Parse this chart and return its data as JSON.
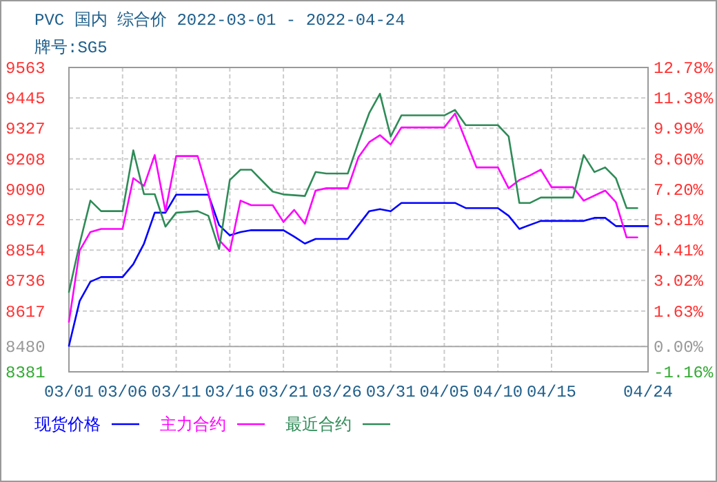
{
  "chart_data": {
    "type": "line",
    "title": "PVC 国内 综合价 2022-03-01 - 2022-04-24",
    "subtitle": "牌号:SG5",
    "xlim": [
      "2022-03-01",
      "2022-04-24"
    ],
    "xticks": [
      {
        "value": "2022-03-01",
        "label": "03/01"
      },
      {
        "value": "2022-03-06",
        "label": "03/06"
      },
      {
        "value": "2022-03-11",
        "label": "03/11"
      },
      {
        "value": "2022-03-16",
        "label": "03/16"
      },
      {
        "value": "2022-03-21",
        "label": "03/21"
      },
      {
        "value": "2022-03-26",
        "label": "03/26"
      },
      {
        "value": "2022-03-31",
        "label": "03/31"
      },
      {
        "value": "2022-04-05",
        "label": "04/05"
      },
      {
        "value": "2022-04-10",
        "label": "04/10"
      },
      {
        "value": "2022-04-15",
        "label": "04/15"
      },
      {
        "value": "2022-04-24",
        "label": "04/24"
      }
    ],
    "ylim": [
      8381,
      9563
    ],
    "yticks": [
      8381,
      8480,
      8617,
      8736,
      8854,
      8972,
      9090,
      9208,
      9327,
      9445,
      9563
    ],
    "y2lim": [
      -1.16,
      12.78
    ],
    "y2ticks": [
      {
        "value": -1.16,
        "label": "-1.16%"
      },
      {
        "value": 0,
        "label": "0.00%"
      },
      {
        "value": 1.63,
        "label": "1.63%"
      },
      {
        "value": 3.02,
        "label": "3.02%"
      },
      {
        "value": 4.41,
        "label": "4.41%"
      },
      {
        "value": 5.81,
        "label": "5.81%"
      },
      {
        "value": 7.2,
        "label": "7.20%"
      },
      {
        "value": 8.6,
        "label": "8.60%"
      },
      {
        "value": 9.99,
        "label": "9.99%"
      },
      {
        "value": 11.38,
        "label": "11.38%"
      },
      {
        "value": 12.78,
        "label": "12.78%"
      }
    ],
    "grid": true,
    "legend": "bottom",
    "series": [
      {
        "name": "现货价格",
        "color": "#0000ff",
        "x": [
          "2022-03-01",
          "2022-03-02",
          "2022-03-03",
          "2022-03-04",
          "2022-03-06",
          "2022-03-07",
          "2022-03-08",
          "2022-03-09",
          "2022-03-10",
          "2022-03-11",
          "2022-03-14",
          "2022-03-15",
          "2022-03-16",
          "2022-03-17",
          "2022-03-18",
          "2022-03-21",
          "2022-03-22",
          "2022-03-23",
          "2022-03-24",
          "2022-03-27",
          "2022-03-28",
          "2022-03-29",
          "2022-03-30",
          "2022-03-31",
          "2022-04-01",
          "2022-04-06",
          "2022-04-07",
          "2022-04-10",
          "2022-04-11",
          "2022-04-12",
          "2022-04-14",
          "2022-04-18",
          "2022-04-19",
          "2022-04-20",
          "2022-04-21",
          "2022-04-24"
        ],
        "values": [
          8482,
          8656,
          8731,
          8749,
          8749,
          8799,
          8879,
          8999,
          8999,
          9069,
          9069,
          8951,
          8911,
          8924,
          8931,
          8931,
          8906,
          8879,
          8897,
          8897,
          8951,
          9005,
          9013,
          9005,
          9037,
          9037,
          9017,
          9017,
          8987,
          8936,
          8967,
          8967,
          8979,
          8979,
          8947,
          8947
        ]
      },
      {
        "name": "主力合约",
        "color": "#ff00ff",
        "x": [
          "2022-03-01",
          "2022-03-02",
          "2022-03-03",
          "2022-03-04",
          "2022-03-06",
          "2022-03-07",
          "2022-03-08",
          "2022-03-09",
          "2022-03-10",
          "2022-03-11",
          "2022-03-13",
          "2022-03-14",
          "2022-03-15",
          "2022-03-16",
          "2022-03-17",
          "2022-03-18",
          "2022-03-20",
          "2022-03-21",
          "2022-03-22",
          "2022-03-23",
          "2022-03-24",
          "2022-03-25",
          "2022-03-27",
          "2022-03-28",
          "2022-03-29",
          "2022-03-30",
          "2022-03-31",
          "2022-04-01",
          "2022-04-05",
          "2022-04-06",
          "2022-04-08",
          "2022-04-10",
          "2022-04-11",
          "2022-04-12",
          "2022-04-13",
          "2022-04-14",
          "2022-04-15",
          "2022-04-17",
          "2022-04-18",
          "2022-04-20",
          "2022-04-21",
          "2022-04-22",
          "2022-04-23"
        ],
        "values": [
          8575,
          8852,
          8924,
          8936,
          8936,
          9133,
          9103,
          9223,
          9005,
          9219,
          9219,
          9076,
          8893,
          8849,
          9046,
          9028,
          9028,
          8963,
          9010,
          8956,
          9085,
          9094,
          9094,
          9215,
          9273,
          9300,
          9264,
          9330,
          9330,
          9384,
          9175,
          9175,
          9094,
          9126,
          9144,
          9166,
          9098,
          9098,
          9046,
          9085,
          9040,
          8903,
          8903
        ]
      },
      {
        "name": "最近合约",
        "color": "#2e8b57",
        "x": [
          "2022-03-01",
          "2022-03-02",
          "2022-03-03",
          "2022-03-04",
          "2022-03-06",
          "2022-03-07",
          "2022-03-08",
          "2022-03-09",
          "2022-03-10",
          "2022-03-11",
          "2022-03-13",
          "2022-03-14",
          "2022-03-15",
          "2022-03-16",
          "2022-03-17",
          "2022-03-18",
          "2022-03-20",
          "2022-03-21",
          "2022-03-23",
          "2022-03-24",
          "2022-03-25",
          "2022-03-27",
          "2022-03-28",
          "2022-03-29",
          "2022-03-30",
          "2022-03-31",
          "2022-04-01",
          "2022-04-05",
          "2022-04-06",
          "2022-04-07",
          "2022-04-10",
          "2022-04-11",
          "2022-04-12",
          "2022-04-13",
          "2022-04-14",
          "2022-04-17",
          "2022-04-18",
          "2022-04-19",
          "2022-04-20",
          "2022-04-21",
          "2022-04-22",
          "2022-04-23"
        ],
        "values": [
          8691,
          8879,
          9046,
          9005,
          9005,
          9241,
          9071,
          9071,
          8945,
          8999,
          9005,
          8987,
          8858,
          9126,
          9166,
          9166,
          9081,
          9070,
          9064,
          9157,
          9151,
          9151,
          9273,
          9386,
          9461,
          9295,
          9377,
          9377,
          9398,
          9339,
          9339,
          9295,
          9037,
          9037,
          9058,
          9058,
          9223,
          9157,
          9175,
          9133,
          9017,
          9017
        ]
      }
    ]
  }
}
